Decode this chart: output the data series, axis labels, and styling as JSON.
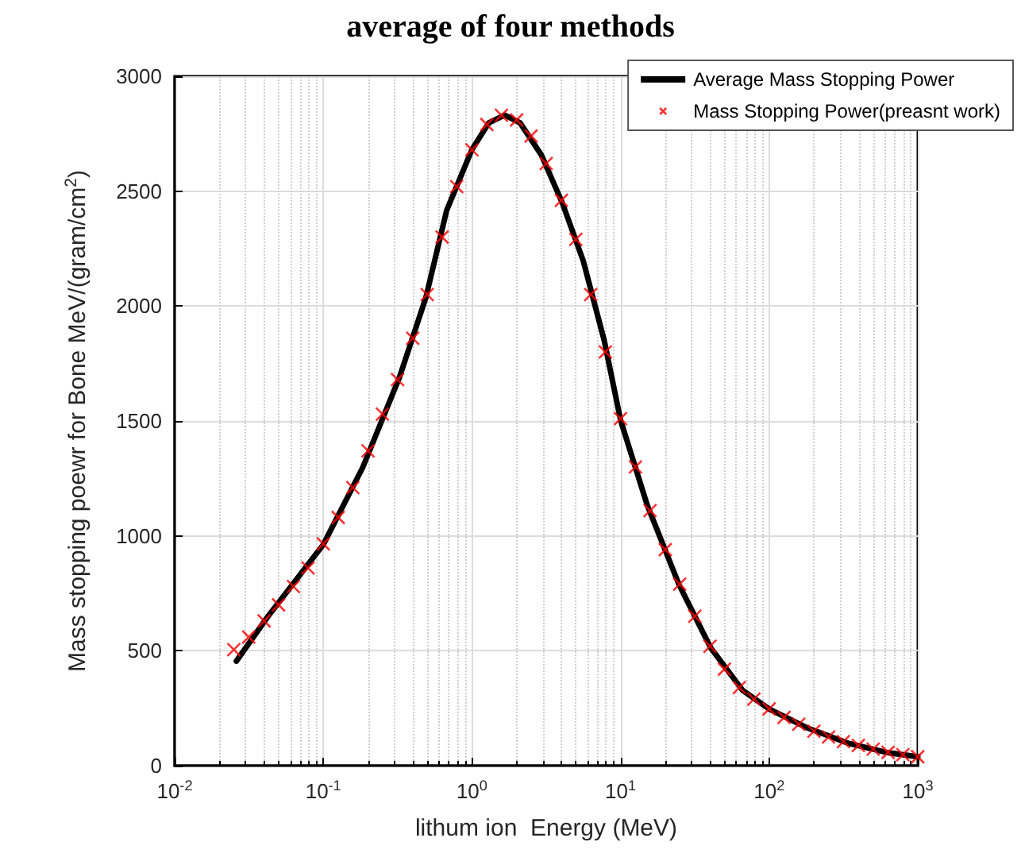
{
  "chart_data": {
    "type": "line",
    "title": "average of four methods",
    "xlabel": "lithum ion  Energy (MeV)",
    "ylabel": "Mass stopping poewr for Bone MeV/(gram/cm$^{2}$)",
    "log": "x",
    "grid": true,
    "legend": "top right",
    "xlim": [
      0.01,
      1000
    ],
    "xticks": [
      {
        "value": 0.01,
        "label": "10$^{-2}$"
      },
      {
        "value": 0.1,
        "label": "10$^{-1}$"
      },
      {
        "value": 1,
        "label": "10$^{0}$"
      },
      {
        "value": 10,
        "label": "10$^{1}$"
      },
      {
        "value": 100,
        "label": "10$^{2}$"
      },
      {
        "value": 1000,
        "label": "10$^{3}$"
      }
    ],
    "ylim": [
      0,
      3000
    ],
    "yticks": [
      0,
      500,
      1000,
      1500,
      2000,
      2500,
      3000
    ],
    "series": [
      {
        "name": "Average Mass Stopping Power",
        "color": "#000000",
        "line_style": "solid",
        "x": [
          0.026,
          0.0426,
          0.1,
          0.184,
          0.325,
          0.489,
          0.676,
          1.0,
          1.3,
          1.66,
          2.11,
          2.93,
          4.05,
          5.61,
          7.77,
          10,
          15.1,
          24.7,
          40.5,
          66.3,
          100,
          178,
          343,
          611,
          1000
        ],
        "values": [
          455,
          651,
          962,
          1297,
          1689,
          2035,
          2416,
          2681,
          2797,
          2831,
          2797,
          2658,
          2450,
          2197,
          1850,
          1504,
          1135,
          789,
          512,
          328,
          247,
          166,
          97,
          58,
          39
        ]
      },
      {
        "name": "Mass Stopping Power(preasnt work)",
        "type": "scatter",
        "marker": "cross",
        "color": "#ff0000",
        "x": [
          0.025,
          0.0315,
          0.04,
          0.05,
          0.063,
          0.079,
          0.1,
          0.126,
          0.158,
          0.2,
          0.25,
          0.316,
          0.4,
          0.5,
          0.63,
          0.79,
          1.0,
          1.26,
          1.58,
          2.0,
          2.5,
          3.16,
          4.0,
          5.0,
          6.3,
          7.9,
          10,
          12.6,
          15.8,
          20,
          25,
          31.6,
          40,
          50,
          63,
          79,
          100,
          126,
          158,
          200,
          251,
          316,
          398,
          501,
          631,
          794,
          1000
        ],
        "values": [
          505,
          560,
          630,
          700,
          780,
          860,
          965,
          1080,
          1210,
          1370,
          1530,
          1680,
          1860,
          2050,
          2300,
          2520,
          2680,
          2790,
          2830,
          2810,
          2740,
          2620,
          2460,
          2290,
          2050,
          1800,
          1510,
          1300,
          1110,
          940,
          790,
          650,
          520,
          420,
          340,
          290,
          247,
          210,
          180,
          150,
          125,
          105,
          88,
          72,
          58,
          48,
          39
        ]
      }
    ]
  }
}
